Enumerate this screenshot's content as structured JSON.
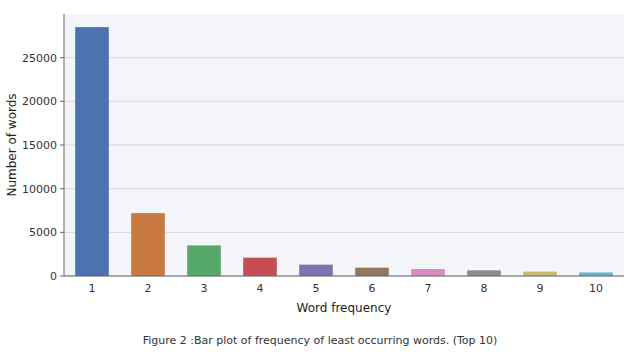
{
  "chart_data": {
    "type": "bar",
    "caption": "Figure 2 :Bar plot of frequency of least occurring words. (Top 10)",
    "xlabel": "Word frequency",
    "ylabel": "Number of words",
    "categories": [
      1,
      2,
      3,
      4,
      5,
      6,
      7,
      8,
      9,
      10
    ],
    "values": [
      28500,
      7200,
      3500,
      2100,
      1300,
      950,
      800,
      650,
      500,
      400
    ],
    "colors": [
      "#4c72b0",
      "#c87941",
      "#55a868",
      "#c44e52",
      "#8172b2",
      "#937860",
      "#da8bc3",
      "#8c8c8c",
      "#ccb974",
      "#64b5cd"
    ],
    "ylim": [
      0,
      30000
    ],
    "yticks": [
      0,
      5000,
      10000,
      15000,
      20000,
      25000
    ],
    "grid": true
  }
}
